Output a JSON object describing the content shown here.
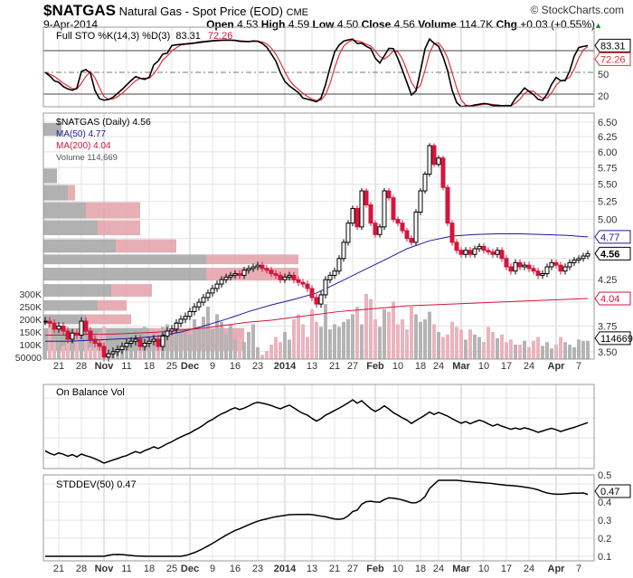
{
  "header": {
    "symbol": "$NATGAS",
    "name": "Natural Gas - Spot Price (EOD)",
    "exchange": "CME",
    "copyright": "© StockCharts.com",
    "date": "9-Apr-2014",
    "open_label": "Open",
    "open": "4.53",
    "high_label": "High",
    "high": "4.59",
    "low_label": "Low",
    "low": "4.50",
    "close_label": "Close",
    "close": "4.56",
    "volume_label": "Volume",
    "volume": "114.7K",
    "chg_label": "Chg",
    "chg": "+0.03 (+0.55%)"
  },
  "legends": {
    "sto": "Full STO %K(14,3) %D(3)",
    "sto_k": "83.31",
    "sto_d": "72.26",
    "price": "$NATGAS (Daily) 4.56",
    "ma50": "MA(50) 4.77",
    "ma200": "MA(200) 4.04",
    "volume": "Volume 114,669",
    "obv": "On Balance Vol",
    "stddev": "STDDEV(50) 0.47"
  },
  "colors": {
    "up": "#000000",
    "down": "#d6143c",
    "ma50": "#1a1aa0",
    "ma200": "#d6143c",
    "vol_up": "#b4b4b4",
    "vol_down": "#ebb4bc",
    "vbp_gray": "#a8a8a8",
    "vbp_red": "#e4a0a8"
  },
  "chart_data": {
    "type": "candlestick",
    "x_ticks": [
      {
        "label": "21",
        "i": 3
      },
      {
        "label": "28",
        "i": 8
      },
      {
        "label": "Nov",
        "i": 13,
        "bold": true
      },
      {
        "label": "11",
        "i": 18
      },
      {
        "label": "18",
        "i": 23
      },
      {
        "label": "25",
        "i": 28
      },
      {
        "label": "Dec",
        "i": 32,
        "bold": true
      },
      {
        "label": "9",
        "i": 37
      },
      {
        "label": "16",
        "i": 42
      },
      {
        "label": "23",
        "i": 47
      },
      {
        "label": "2014",
        "i": 53,
        "bold": true
      },
      {
        "label": "13",
        "i": 59
      },
      {
        "label": "21",
        "i": 64
      },
      {
        "label": "27",
        "i": 68
      },
      {
        "label": "Feb",
        "i": 73,
        "bold": true
      },
      {
        "label": "10",
        "i": 78
      },
      {
        "label": "18",
        "i": 83
      },
      {
        "label": "24",
        "i": 87
      },
      {
        "label": "Mar",
        "i": 92,
        "bold": true
      },
      {
        "label": "10",
        "i": 97
      },
      {
        "label": "17",
        "i": 102
      },
      {
        "label": "24",
        "i": 107
      },
      {
        "label": "Apr",
        "i": 113,
        "bold": true
      },
      {
        "label": "7",
        "i": 118
      }
    ],
    "price_ticks": [
      "6.50",
      "6.25",
      "6.00",
      "5.75",
      "5.50",
      "5.25",
      "5.00",
      "3.75",
      "3.50",
      "4.25"
    ],
    "price_range": [
      3.5,
      6.5
    ],
    "price_badges": {
      "ma50": "4.77",
      "last": "4.56",
      "ma200": "4.04",
      "volume": "114669"
    },
    "volume_ticks": [
      "300K",
      "250K",
      "200K",
      "150K",
      "100K",
      "50000"
    ],
    "sto_ticks": [
      "50",
      "20"
    ],
    "sto_badges": {
      "k": "83.31",
      "d": "72.26"
    },
    "stddev_ticks": [
      "0.5",
      "0.4",
      "0.3",
      "0.2",
      "0.1"
    ],
    "stddev_badge": "0.47",
    "close": [
      3.8,
      3.78,
      3.72,
      3.75,
      3.7,
      3.62,
      3.68,
      3.66,
      3.8,
      3.7,
      3.62,
      3.58,
      3.55,
      3.45,
      3.48,
      3.5,
      3.52,
      3.55,
      3.58,
      3.6,
      3.62,
      3.55,
      3.58,
      3.6,
      3.62,
      3.55,
      3.65,
      3.7,
      3.72,
      3.78,
      3.82,
      3.85,
      3.9,
      3.95,
      4.0,
      4.05,
      4.1,
      4.15,
      4.2,
      4.25,
      4.28,
      4.3,
      4.32,
      4.3,
      4.36,
      4.38,
      4.4,
      4.42,
      4.38,
      4.36,
      4.32,
      4.3,
      4.25,
      4.28,
      4.3,
      4.25,
      4.22,
      4.2,
      4.15,
      4.05,
      3.98,
      4.08,
      4.25,
      4.3,
      4.35,
      4.5,
      4.7,
      4.95,
      5.15,
      4.9,
      5.4,
      5.2,
      4.95,
      4.8,
      4.9,
      5.4,
      5.3,
      5.0,
      4.95,
      4.85,
      4.75,
      4.7,
      5.1,
      5.4,
      5.65,
      6.1,
      5.8,
      5.9,
      5.45,
      4.95,
      4.7,
      4.6,
      4.55,
      4.6,
      4.55,
      4.62,
      4.65,
      4.6,
      4.58,
      4.55,
      4.6,
      4.5,
      4.4,
      4.35,
      4.45,
      4.4,
      4.42,
      4.38,
      4.35,
      4.3,
      4.32,
      4.4,
      4.45,
      4.42,
      4.35,
      4.4,
      4.45,
      4.48,
      4.5,
      4.53,
      4.56
    ],
    "volume_k": [
      130,
      180,
      120,
      150,
      95,
      140,
      110,
      160,
      200,
      120,
      90,
      130,
      150,
      170,
      110,
      120,
      100,
      130,
      90,
      160,
      140,
      110,
      170,
      130,
      150,
      120,
      170,
      180,
      140,
      190,
      160,
      150,
      140,
      200,
      170,
      210,
      250,
      160,
      220,
      190,
      140,
      180,
      120,
      130,
      110,
      150,
      180,
      90,
      60,
      75,
      100,
      130,
      110,
      150,
      120,
      200,
      220,
      180,
      130,
      240,
      190,
      170,
      260,
      160,
      180,
      170,
      190,
      200,
      220,
      250,
      180,
      300,
      280,
      200,
      170,
      240,
      230,
      270,
      180,
      200,
      160,
      250,
      220,
      190,
      200,
      230,
      180,
      150,
      130,
      140,
      190,
      170,
      160,
      120,
      160,
      140,
      130,
      110,
      170,
      150,
      125,
      140,
      110,
      120,
      100,
      100,
      115,
      90,
      115,
      130,
      95,
      110,
      85,
      100,
      130,
      110,
      100,
      90,
      120,
      115,
      115
    ],
    "ma_step_days": 5,
    "ma50": [
      3.6,
      3.6,
      3.61,
      3.62,
      3.63,
      3.65,
      3.69,
      3.75,
      3.82,
      3.9,
      3.97,
      4.03,
      4.1,
      4.22,
      4.35,
      4.48,
      4.62,
      4.72,
      4.78,
      4.8,
      4.81,
      4.81,
      4.8,
      4.79,
      4.77
    ],
    "ma200": [
      3.66,
      3.66,
      3.67,
      3.67,
      3.68,
      3.69,
      3.71,
      3.73,
      3.76,
      3.79,
      3.81,
      3.84,
      3.87,
      3.9,
      3.92,
      3.94,
      3.96,
      3.97,
      3.98,
      3.99,
      4.0,
      4.01,
      4.02,
      4.03,
      4.04
    ],
    "volume_by_price": [
      {
        "lo": 6.25,
        "hi": 6.5,
        "up": 20,
        "down": 0
      },
      {
        "lo": 5.75,
        "hi": 6.0,
        "up": 0,
        "down": 0
      },
      {
        "lo": 5.5,
        "hi": 5.75,
        "up": 15,
        "down": 0
      },
      {
        "lo": 5.25,
        "hi": 5.5,
        "up": 27,
        "down": 8
      },
      {
        "lo": 5.0,
        "hi": 5.25,
        "up": 47,
        "down": 60
      },
      {
        "lo": 4.78,
        "hi": 5.0,
        "up": 60,
        "down": 47
      },
      {
        "lo": 4.56,
        "hi": 4.75,
        "up": 80,
        "down": 67
      },
      {
        "lo": 4.42,
        "hi": 4.56,
        "up": 180,
        "down": 102
      },
      {
        "lo": 4.23,
        "hi": 4.4,
        "up": 180,
        "down": 102
      },
      {
        "lo": 4.05,
        "hi": 4.21,
        "up": 75,
        "down": 45
      },
      {
        "lo": 3.9,
        "hi": 4.03,
        "up": 60,
        "down": 32
      },
      {
        "lo": 3.76,
        "hi": 3.88,
        "up": 47,
        "down": 50
      },
      {
        "lo": 3.5,
        "hi": 3.74,
        "up": 117,
        "down": 105
      }
    ]
  }
}
